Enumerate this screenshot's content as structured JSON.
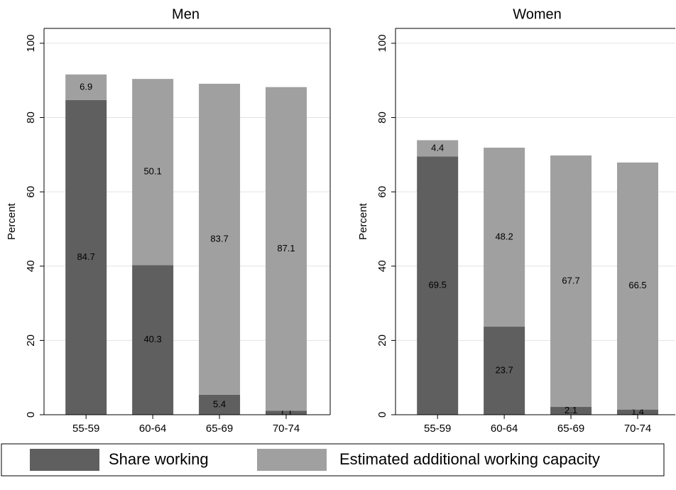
{
  "chart_data": [
    {
      "type": "stacked-bar",
      "title": "Men",
      "y_label": "Percent",
      "categories": [
        "55-59",
        "60-64",
        "65-69",
        "70-74"
      ],
      "series": [
        {
          "name": "Share working",
          "color": "#5f5f5f",
          "values": [
            84.7,
            40.3,
            5.4,
            1.1
          ]
        },
        {
          "name": "Estimated additional working capacity",
          "color": "#a0a0a0",
          "values": [
            6.9,
            50.1,
            83.7,
            87.1
          ]
        }
      ],
      "ylim": [
        0,
        104
      ],
      "yticks": [
        0,
        20,
        40,
        60,
        80,
        100
      ],
      "grid": true
    },
    {
      "type": "stacked-bar",
      "title": "Women",
      "y_label": "Percent",
      "categories": [
        "55-59",
        "60-64",
        "65-69",
        "70-74"
      ],
      "series": [
        {
          "name": "Share working",
          "color": "#5f5f5f",
          "values": [
            69.5,
            23.7,
            2.1,
            1.4
          ]
        },
        {
          "name": "Estimated additional working capacity",
          "color": "#a0a0a0",
          "values": [
            4.4,
            48.2,
            67.7,
            66.5
          ]
        }
      ],
      "ylim": [
        0,
        104
      ],
      "yticks": [
        0,
        20,
        40,
        60,
        80,
        100
      ],
      "grid": true
    }
  ]
}
